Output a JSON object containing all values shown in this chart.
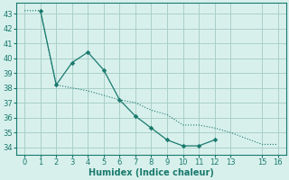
{
  "line1_x": [
    0,
    1,
    2,
    3,
    4,
    5,
    6,
    7,
    8,
    9,
    10,
    11,
    12,
    13,
    15,
    16
  ],
  "line1_y": [
    43.2,
    43.2,
    38.2,
    38.0,
    37.8,
    37.5,
    37.2,
    37.0,
    36.5,
    36.2,
    35.5,
    35.5,
    35.3,
    35.0,
    34.2,
    34.2
  ],
  "line2_x": [
    1,
    2,
    3,
    4,
    5,
    6,
    7,
    8,
    9,
    10,
    11,
    12
  ],
  "line2_y": [
    43.2,
    38.2,
    39.7,
    40.4,
    39.2,
    37.2,
    36.1,
    35.3,
    34.5,
    34.1,
    34.1,
    34.5
  ],
  "color": "#1a7a6e",
  "bg_color": "#d8f0ec",
  "grid_color": "#aacfc8",
  "xlabel": "Humidex (Indice chaleur)",
  "xlim": [
    -0.5,
    16.5
  ],
  "ylim": [
    33.5,
    43.7
  ],
  "xticks": [
    0,
    1,
    2,
    3,
    4,
    5,
    6,
    7,
    8,
    9,
    10,
    11,
    12,
    13,
    15,
    16
  ],
  "yticks": [
    34,
    35,
    36,
    37,
    38,
    39,
    40,
    41,
    42,
    43
  ],
  "xlabel_fontsize": 7,
  "tick_fontsize": 6
}
